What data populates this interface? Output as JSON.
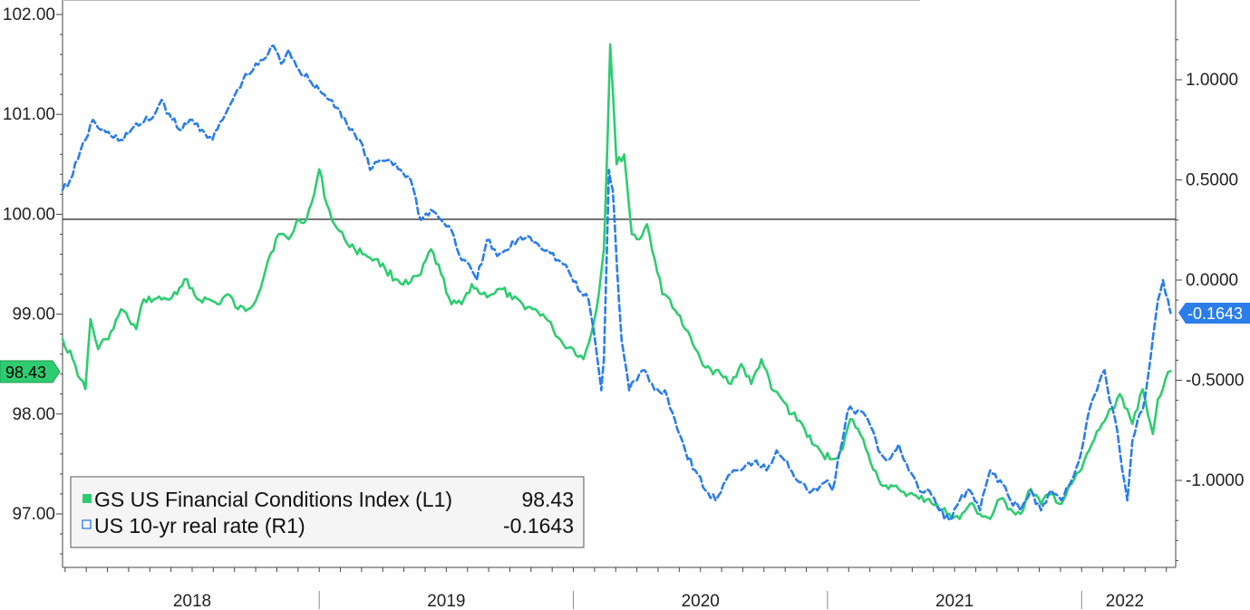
{
  "chart_data": {
    "type": "line",
    "title": "",
    "xlabel": "",
    "y_left": {
      "ylim": [
        96.5,
        102.1
      ],
      "ticks": [
        97.0,
        98.0,
        99.0,
        100.0,
        101.0,
        102.0
      ],
      "tick_labels": [
        "97.00",
        "98.00",
        "99.00",
        "100.00",
        "101.00",
        "102.00"
      ]
    },
    "y_right": {
      "ylim": [
        -1.42,
        1.36
      ],
      "ticks": [
        -1.0,
        -0.5,
        0.0,
        0.5,
        1.0
      ],
      "tick_labels": [
        "-1.0000",
        "-0.5000",
        "0.0000",
        "0.5000",
        "1.0000"
      ]
    },
    "x_range": [
      2017.99,
      2022.37
    ],
    "year_labels": [
      {
        "label": "2018",
        "x": 2018.5
      },
      {
        "label": "2019",
        "x": 2019.5
      },
      {
        "label": "2020",
        "x": 2020.5
      },
      {
        "label": "2021",
        "x": 2021.5
      },
      {
        "label": "2022",
        "x": 2022.17
      }
    ],
    "year_separators": [
      2019.0,
      2020.0,
      2021.0,
      2022.0
    ],
    "reference_line": {
      "axis": "left",
      "value": 99.95
    },
    "series": [
      {
        "name": "GS US Financial Conditions Index (L1)",
        "last_value": "98.43",
        "axis": "left",
        "color": "#2ecc71",
        "style": "solid",
        "points": [
          [
            2017.99,
            98.75
          ],
          [
            2018.03,
            98.55
          ],
          [
            2018.06,
            98.35
          ],
          [
            2018.08,
            98.25
          ],
          [
            2018.1,
            98.95
          ],
          [
            2018.13,
            98.65
          ],
          [
            2018.16,
            98.75
          ],
          [
            2018.19,
            98.85
          ],
          [
            2018.22,
            99.05
          ],
          [
            2018.25,
            98.95
          ],
          [
            2018.28,
            98.85
          ],
          [
            2018.31,
            99.15
          ],
          [
            2018.35,
            99.15
          ],
          [
            2018.4,
            99.15
          ],
          [
            2018.44,
            99.2
          ],
          [
            2018.48,
            99.35
          ],
          [
            2018.52,
            99.15
          ],
          [
            2018.56,
            99.15
          ],
          [
            2018.6,
            99.1
          ],
          [
            2018.64,
            99.2
          ],
          [
            2018.68,
            99.05
          ],
          [
            2018.72,
            99.05
          ],
          [
            2018.76,
            99.2
          ],
          [
            2018.8,
            99.55
          ],
          [
            2018.84,
            99.8
          ],
          [
            2018.88,
            99.75
          ],
          [
            2018.92,
            99.95
          ],
          [
            2018.95,
            99.95
          ],
          [
            2018.98,
            100.2
          ],
          [
            2019.0,
            100.45
          ],
          [
            2019.03,
            100.1
          ],
          [
            2019.06,
            99.9
          ],
          [
            2019.1,
            99.75
          ],
          [
            2019.14,
            99.65
          ],
          [
            2019.18,
            99.6
          ],
          [
            2019.22,
            99.55
          ],
          [
            2019.26,
            99.45
          ],
          [
            2019.3,
            99.35
          ],
          [
            2019.35,
            99.3
          ],
          [
            2019.4,
            99.4
          ],
          [
            2019.44,
            99.65
          ],
          [
            2019.48,
            99.4
          ],
          [
            2019.52,
            99.1
          ],
          [
            2019.56,
            99.1
          ],
          [
            2019.6,
            99.3
          ],
          [
            2019.64,
            99.2
          ],
          [
            2019.68,
            99.2
          ],
          [
            2019.72,
            99.25
          ],
          [
            2019.76,
            99.15
          ],
          [
            2019.8,
            99.1
          ],
          [
            2019.84,
            99.05
          ],
          [
            2019.88,
            99.0
          ],
          [
            2019.92,
            98.85
          ],
          [
            2019.96,
            98.7
          ],
          [
            2020.0,
            98.65
          ],
          [
            2020.04,
            98.55
          ],
          [
            2020.07,
            98.8
          ],
          [
            2020.1,
            99.2
          ],
          [
            2020.12,
            99.65
          ],
          [
            2020.135,
            100.8
          ],
          [
            2020.145,
            101.7
          ],
          [
            2020.155,
            101.25
          ],
          [
            2020.17,
            100.5
          ],
          [
            2020.2,
            100.6
          ],
          [
            2020.23,
            99.8
          ],
          [
            2020.26,
            99.75
          ],
          [
            2020.29,
            99.9
          ],
          [
            2020.32,
            99.55
          ],
          [
            2020.35,
            99.2
          ],
          [
            2020.38,
            99.15
          ],
          [
            2020.41,
            99.0
          ],
          [
            2020.44,
            98.85
          ],
          [
            2020.47,
            98.7
          ],
          [
            2020.5,
            98.55
          ],
          [
            2020.54,
            98.45
          ],
          [
            2020.58,
            98.4
          ],
          [
            2020.62,
            98.3
          ],
          [
            2020.66,
            98.5
          ],
          [
            2020.7,
            98.3
          ],
          [
            2020.74,
            98.55
          ],
          [
            2020.78,
            98.25
          ],
          [
            2020.82,
            98.15
          ],
          [
            2020.86,
            98.0
          ],
          [
            2020.9,
            97.9
          ],
          [
            2020.94,
            97.7
          ],
          [
            2020.98,
            97.6
          ],
          [
            2021.02,
            97.55
          ],
          [
            2021.06,
            97.65
          ],
          [
            2021.09,
            97.95
          ],
          [
            2021.12,
            97.85
          ],
          [
            2021.16,
            97.6
          ],
          [
            2021.2,
            97.35
          ],
          [
            2021.24,
            97.25
          ],
          [
            2021.28,
            97.25
          ],
          [
            2021.32,
            97.2
          ],
          [
            2021.36,
            97.15
          ],
          [
            2021.4,
            97.15
          ],
          [
            2021.44,
            97.05
          ],
          [
            2021.48,
            97.0
          ],
          [
            2021.52,
            96.95
          ],
          [
            2021.56,
            97.1
          ],
          [
            2021.6,
            97.0
          ],
          [
            2021.64,
            96.95
          ],
          [
            2021.68,
            97.15
          ],
          [
            2021.72,
            97.05
          ],
          [
            2021.76,
            97.0
          ],
          [
            2021.8,
            97.25
          ],
          [
            2021.84,
            97.1
          ],
          [
            2021.88,
            97.2
          ],
          [
            2021.92,
            97.1
          ],
          [
            2021.96,
            97.3
          ],
          [
            2022.0,
            97.45
          ],
          [
            2022.04,
            97.7
          ],
          [
            2022.08,
            97.9
          ],
          [
            2022.12,
            98.05
          ],
          [
            2022.15,
            98.2
          ],
          [
            2022.18,
            98.05
          ],
          [
            2022.2,
            97.9
          ],
          [
            2022.22,
            98.05
          ],
          [
            2022.24,
            98.25
          ],
          [
            2022.26,
            98.0
          ],
          [
            2022.28,
            97.8
          ],
          [
            2022.3,
            98.15
          ],
          [
            2022.33,
            98.35
          ],
          [
            2022.35,
            98.43
          ]
        ]
      },
      {
        "name": "US 10-yr real rate (R1)",
        "last_value": "-0.1643",
        "axis": "right",
        "color": "#2b7de9",
        "style": "dashed",
        "points": [
          [
            2017.99,
            0.45
          ],
          [
            2018.02,
            0.5
          ],
          [
            2018.05,
            0.6
          ],
          [
            2018.08,
            0.7
          ],
          [
            2018.11,
            0.8
          ],
          [
            2018.14,
            0.75
          ],
          [
            2018.18,
            0.72
          ],
          [
            2018.22,
            0.7
          ],
          [
            2018.26,
            0.75
          ],
          [
            2018.3,
            0.78
          ],
          [
            2018.35,
            0.82
          ],
          [
            2018.38,
            0.9
          ],
          [
            2018.42,
            0.8
          ],
          [
            2018.46,
            0.75
          ],
          [
            2018.5,
            0.8
          ],
          [
            2018.54,
            0.75
          ],
          [
            2018.58,
            0.7
          ],
          [
            2018.62,
            0.8
          ],
          [
            2018.66,
            0.9
          ],
          [
            2018.7,
            1.0
          ],
          [
            2018.74,
            1.05
          ],
          [
            2018.78,
            1.1
          ],
          [
            2018.82,
            1.17
          ],
          [
            2018.85,
            1.08
          ],
          [
            2018.88,
            1.15
          ],
          [
            2018.92,
            1.05
          ],
          [
            2018.96,
            1.0
          ],
          [
            2019.0,
            0.95
          ],
          [
            2019.04,
            0.9
          ],
          [
            2019.08,
            0.85
          ],
          [
            2019.12,
            0.75
          ],
          [
            2019.16,
            0.7
          ],
          [
            2019.2,
            0.55
          ],
          [
            2019.24,
            0.6
          ],
          [
            2019.28,
            0.6
          ],
          [
            2019.32,
            0.55
          ],
          [
            2019.36,
            0.5
          ],
          [
            2019.4,
            0.3
          ],
          [
            2019.44,
            0.35
          ],
          [
            2019.48,
            0.3
          ],
          [
            2019.52,
            0.25
          ],
          [
            2019.56,
            0.1
          ],
          [
            2019.6,
            0.05
          ],
          [
            2019.62,
            0.0
          ],
          [
            2019.66,
            0.2
          ],
          [
            2019.7,
            0.12
          ],
          [
            2019.74,
            0.15
          ],
          [
            2019.78,
            0.2
          ],
          [
            2019.82,
            0.22
          ],
          [
            2019.86,
            0.18
          ],
          [
            2019.9,
            0.15
          ],
          [
            2019.94,
            0.1
          ],
          [
            2019.98,
            0.05
          ],
          [
            2020.02,
            -0.05
          ],
          [
            2020.06,
            -0.1
          ],
          [
            2020.08,
            -0.25
          ],
          [
            2020.1,
            -0.45
          ],
          [
            2020.11,
            -0.55
          ],
          [
            2020.12,
            -0.4
          ],
          [
            2020.14,
            0.55
          ],
          [
            2020.155,
            0.45
          ],
          [
            2020.17,
            0.1
          ],
          [
            2020.19,
            -0.3
          ],
          [
            2020.22,
            -0.55
          ],
          [
            2020.24,
            -0.5
          ],
          [
            2020.28,
            -0.45
          ],
          [
            2020.32,
            -0.55
          ],
          [
            2020.36,
            -0.55
          ],
          [
            2020.4,
            -0.7
          ],
          [
            2020.44,
            -0.85
          ],
          [
            2020.48,
            -0.95
          ],
          [
            2020.52,
            -1.05
          ],
          [
            2020.56,
            -1.1
          ],
          [
            2020.6,
            -1.0
          ],
          [
            2020.64,
            -0.95
          ],
          [
            2020.68,
            -0.92
          ],
          [
            2020.72,
            -0.9
          ],
          [
            2020.76,
            -0.95
          ],
          [
            2020.8,
            -0.85
          ],
          [
            2020.84,
            -0.9
          ],
          [
            2020.88,
            -1.0
          ],
          [
            2020.92,
            -1.05
          ],
          [
            2020.96,
            -1.05
          ],
          [
            2021.0,
            -1.0
          ],
          [
            2021.02,
            -1.05
          ],
          [
            2021.05,
            -0.85
          ],
          [
            2021.08,
            -0.65
          ],
          [
            2021.12,
            -0.65
          ],
          [
            2021.16,
            -0.7
          ],
          [
            2021.2,
            -0.85
          ],
          [
            2021.24,
            -0.9
          ],
          [
            2021.28,
            -0.82
          ],
          [
            2021.32,
            -0.95
          ],
          [
            2021.36,
            -1.05
          ],
          [
            2021.4,
            -1.05
          ],
          [
            2021.44,
            -1.15
          ],
          [
            2021.48,
            -1.2
          ],
          [
            2021.52,
            -1.1
          ],
          [
            2021.56,
            -1.05
          ],
          [
            2021.6,
            -1.15
          ],
          [
            2021.64,
            -0.95
          ],
          [
            2021.68,
            -1.0
          ],
          [
            2021.72,
            -1.1
          ],
          [
            2021.76,
            -1.15
          ],
          [
            2021.8,
            -1.05
          ],
          [
            2021.84,
            -1.15
          ],
          [
            2021.88,
            -1.05
          ],
          [
            2021.92,
            -1.1
          ],
          [
            2021.96,
            -1.0
          ],
          [
            2022.0,
            -0.85
          ],
          [
            2022.03,
            -0.65
          ],
          [
            2022.06,
            -0.55
          ],
          [
            2022.09,
            -0.45
          ],
          [
            2022.11,
            -0.6
          ],
          [
            2022.14,
            -0.75
          ],
          [
            2022.16,
            -0.95
          ],
          [
            2022.18,
            -1.1
          ],
          [
            2022.2,
            -0.8
          ],
          [
            2022.22,
            -0.7
          ],
          [
            2022.24,
            -0.65
          ],
          [
            2022.27,
            -0.4
          ],
          [
            2022.3,
            -0.1
          ],
          [
            2022.32,
            0.0
          ],
          [
            2022.34,
            -0.1
          ],
          [
            2022.35,
            -0.1643
          ]
        ]
      }
    ],
    "legend": {
      "position": "bottom-left"
    }
  },
  "tags": {
    "left_value": "98.43",
    "right_value": "-0.1643"
  },
  "legend_labels": {
    "fci_name": "GS US Financial Conditions Index (L1)",
    "fci_value": "98.43",
    "real_name": "US 10-yr real rate (R1)",
    "real_value": "-0.1643"
  },
  "colors": {
    "green": "#2ecc71",
    "green_dark": "#1f9c4e",
    "blue": "#2b7de9",
    "blue_dark": "#1a5fbd",
    "axis": "#444444",
    "ref_line": "#333333"
  }
}
